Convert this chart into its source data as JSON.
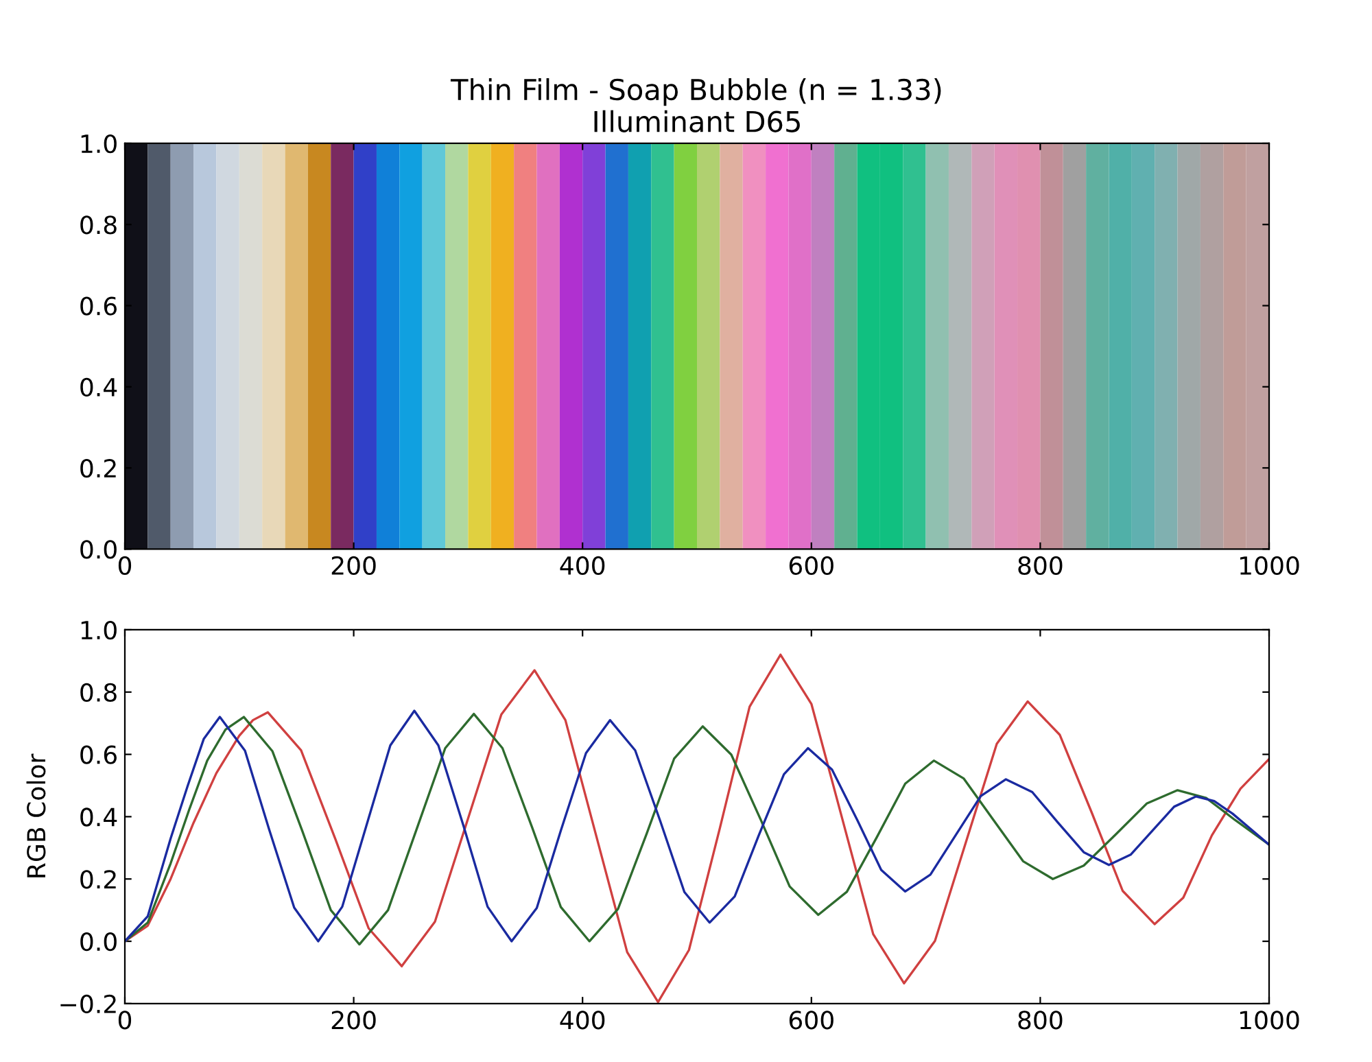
{
  "chart_data": [
    {
      "type": "bar",
      "title": "Thin Film - Soap Bubble (n = 1.33)\nIlluminant D65",
      "x": [
        10,
        30,
        50,
        70,
        90,
        110,
        130,
        150,
        170,
        190,
        210,
        230,
        250,
        270,
        290,
        310,
        330,
        350,
        370,
        390,
        410,
        430,
        450,
        470,
        490,
        510,
        530,
        550,
        570,
        590,
        610,
        630,
        650,
        670,
        690,
        710,
        730,
        750,
        770,
        790,
        810,
        830,
        850,
        870,
        890,
        910,
        930,
        950,
        970,
        990
      ],
      "values": [
        1,
        1,
        1,
        1,
        1,
        1,
        1,
        1,
        1,
        1,
        1,
        1,
        1,
        1,
        1,
        1,
        1,
        1,
        1,
        1,
        1,
        1,
        1,
        1,
        1,
        1,
        1,
        1,
        1,
        1,
        1,
        1,
        1,
        1,
        1,
        1,
        1,
        1,
        1,
        1,
        1,
        1,
        1,
        1,
        1,
        1,
        1,
        1,
        1,
        1
      ],
      "colors": [
        "#101018",
        "#505a6a",
        "#8e9cb0",
        "#b8c8dc",
        "#d0d8e0",
        "#dcdcd4",
        "#e8d8b8",
        "#e0b870",
        "#c88820",
        "#7a2a60",
        "#3040c8",
        "#1080d8",
        "#10a0e0",
        "#60c8d8",
        "#b0d8a0",
        "#e0d040",
        "#f0b020",
        "#f08080",
        "#e070c0",
        "#b030d0",
        "#8040d8",
        "#2070d0",
        "#10a0b0",
        "#30c090",
        "#80d040",
        "#b0d070",
        "#e0b0a0",
        "#f090c0",
        "#f070d0",
        "#e070c8",
        "#c080c0",
        "#60b090",
        "#10c080",
        "#10c080",
        "#30c090",
        "#90c0b0",
        "#b0b8b8",
        "#d0a0b8",
        "#e090b8",
        "#e090b0",
        "#c09098",
        "#a0a0a0",
        "#60b0a0",
        "#50b0a8",
        "#60b0b0",
        "#80b0b0",
        "#a0a8a8",
        "#b0a0a0",
        "#c09c98",
        "#c0a0a0"
      ],
      "xlim": [
        0,
        1000
      ],
      "xticks": [
        0,
        200,
        400,
        600,
        800,
        1000
      ],
      "ylim": [
        0,
        1
      ],
      "yticks": [
        {
          "value": 0,
          "label": "0.0"
        },
        {
          "value": 0.2,
          "label": "0.2"
        },
        {
          "value": 0.4,
          "label": "0.4"
        },
        {
          "value": 0.6,
          "label": "0.6"
        },
        {
          "value": 0.8,
          "label": "0.8"
        },
        {
          "value": 1,
          "label": "1.0"
        }
      ],
      "grid": false,
      "legend": false
    },
    {
      "type": "line",
      "ylabel": "RGB Color",
      "series": [
        {
          "color": "#d04040",
          "x": [
            0,
            20,
            40,
            60,
            80,
            100,
            112,
            125,
            154,
            184,
            213,
            242,
            271,
            300,
            329,
            358,
            385,
            412,
            439,
            466,
            493,
            520,
            546,
            573,
            600,
            627,
            654,
            681,
            708,
            735,
            762,
            789,
            817,
            845,
            872,
            900,
            925,
            950,
            975,
            1000
          ],
          "values": [
            0,
            0.05,
            0.2,
            0.38,
            0.54,
            0.66,
            0.71,
            0.735,
            0.613,
            0.328,
            0.042,
            -0.08,
            0.063,
            0.395,
            0.728,
            0.87,
            0.71,
            0.338,
            -0.035,
            -0.195,
            -0.028,
            0.363,
            0.753,
            0.92,
            0.762,
            0.393,
            0.023,
            -0.135,
            0.001,
            0.318,
            0.634,
            0.77,
            0.663,
            0.413,
            0.162,
            0.055,
            0.14,
            0.34,
            0.49,
            0.585
          ]
        },
        {
          "color": "#2e6b2e",
          "x": [
            0,
            20,
            40,
            56,
            72,
            88,
            104,
            129,
            155,
            180,
            205,
            230,
            255,
            280,
            305,
            330,
            356,
            381,
            406,
            431,
            456,
            480,
            505,
            530,
            556,
            581,
            606,
            631,
            657,
            682,
            707,
            733,
            759,
            785,
            811,
            838,
            866,
            893,
            920,
            945,
            970,
            1000
          ],
          "values": [
            0,
            0.06,
            0.25,
            0.42,
            0.58,
            0.68,
            0.72,
            0.61,
            0.355,
            0.1,
            -0.01,
            0.1,
            0.36,
            0.62,
            0.73,
            0.62,
            0.365,
            0.11,
            0.0,
            0.104,
            0.345,
            0.586,
            0.69,
            0.599,
            0.388,
            0.176,
            0.085,
            0.159,
            0.333,
            0.506,
            0.58,
            0.523,
            0.39,
            0.257,
            0.2,
            0.243,
            0.343,
            0.442,
            0.485,
            0.46,
            0.39,
            0.31
          ]
        },
        {
          "color": "#1a2aa0",
          "x": [
            0,
            20,
            40,
            55,
            69,
            83,
            105,
            126,
            148,
            169,
            190,
            211,
            232,
            253,
            274,
            296,
            317,
            338,
            360,
            381,
            403,
            424,
            446,
            468,
            489,
            511,
            533,
            554,
            576,
            597,
            618,
            640,
            661,
            682,
            704,
            726,
            748,
            770,
            793,
            815,
            838,
            860,
            879,
            898,
            917,
            936,
            952,
            968,
            984,
            1000
          ],
          "values": [
            0,
            0.08,
            0.33,
            0.5,
            0.65,
            0.72,
            0.612,
            0.36,
            0.108,
            0.0,
            0.111,
            0.37,
            0.629,
            0.74,
            0.629,
            0.37,
            0.111,
            0.0,
            0.107,
            0.355,
            0.604,
            0.71,
            0.613,
            0.385,
            0.158,
            0.06,
            0.144,
            0.34,
            0.536,
            0.62,
            0.551,
            0.39,
            0.229,
            0.16,
            0.214,
            0.34,
            0.466,
            0.52,
            0.479,
            0.383,
            0.286,
            0.245,
            0.278,
            0.355,
            0.432,
            0.465,
            0.45,
            0.41,
            0.36,
            0.31
          ]
        }
      ],
      "xlim": [
        0,
        1000
      ],
      "xticks": [
        0,
        200,
        400,
        600,
        800,
        1000
      ],
      "ylim": [
        -0.2,
        1
      ],
      "yticks": [
        {
          "value": -0.2,
          "label": "−0.2"
        },
        {
          "value": 0,
          "label": "0.0"
        },
        {
          "value": 0.2,
          "label": "0.2"
        },
        {
          "value": 0.4,
          "label": "0.4"
        },
        {
          "value": 0.6,
          "label": "0.6"
        },
        {
          "value": 0.8,
          "label": "0.8"
        },
        {
          "value": 1,
          "label": "1.0"
        }
      ],
      "grid": false,
      "legend": false,
      "marker": "none",
      "line_style": "solid"
    }
  ]
}
